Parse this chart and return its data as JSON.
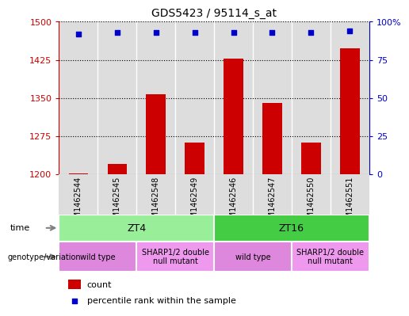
{
  "title": "GDS5423 / 95114_s_at",
  "samples": [
    "GSM1462544",
    "GSM1462545",
    "GSM1462548",
    "GSM1462549",
    "GSM1462546",
    "GSM1462547",
    "GSM1462550",
    "GSM1462551"
  ],
  "counts": [
    1202,
    1220,
    1357,
    1262,
    1428,
    1340,
    1263,
    1448
  ],
  "percentiles": [
    92,
    93,
    93,
    93,
    93,
    93,
    93,
    94
  ],
  "ylim_left": [
    1200,
    1500
  ],
  "ylim_right": [
    0,
    100
  ],
  "yticks_left": [
    1200,
    1275,
    1350,
    1425,
    1500
  ],
  "yticks_right": [
    0,
    25,
    50,
    75,
    100
  ],
  "bar_color": "#cc0000",
  "dot_color": "#0000cc",
  "time_groups": [
    {
      "label": "ZT4",
      "start": 0,
      "end": 4,
      "color": "#99ee99"
    },
    {
      "label": "ZT16",
      "start": 4,
      "end": 8,
      "color": "#44cc44"
    }
  ],
  "genotype_groups": [
    {
      "label": "wild type",
      "start": 0,
      "end": 2,
      "color": "#dd88dd"
    },
    {
      "label": "SHARP1/2 double\nnull mutant",
      "start": 2,
      "end": 4,
      "color": "#ee99ee"
    },
    {
      "label": "wild type",
      "start": 4,
      "end": 6,
      "color": "#dd88dd"
    },
    {
      "label": "SHARP1/2 double\nnull mutant",
      "start": 6,
      "end": 8,
      "color": "#ee99ee"
    }
  ],
  "bg_color": "#dddddd",
  "legend_count_color": "#cc0000",
  "legend_pct_color": "#0000cc"
}
